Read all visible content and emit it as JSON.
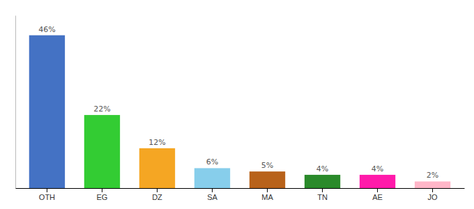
{
  "chart_data": {
    "type": "bar",
    "categories": [
      "OTH",
      "EG",
      "DZ",
      "SA",
      "MA",
      "TN",
      "AE",
      "JO"
    ],
    "values": [
      46,
      22,
      12,
      6,
      5,
      4,
      4,
      2
    ],
    "value_labels": [
      "46%",
      "22%",
      "12%",
      "6%",
      "5%",
      "4%",
      "4%",
      "2%"
    ],
    "colors": [
      "#4472c4",
      "#33cc33",
      "#f5a623",
      "#87ceeb",
      "#b8621a",
      "#2a8a2a",
      "#ff1aaa",
      "#ffb6c8"
    ],
    "ylim": [
      0,
      52
    ],
    "data_labels": true,
    "tick_labels": "x",
    "grid": false
  }
}
